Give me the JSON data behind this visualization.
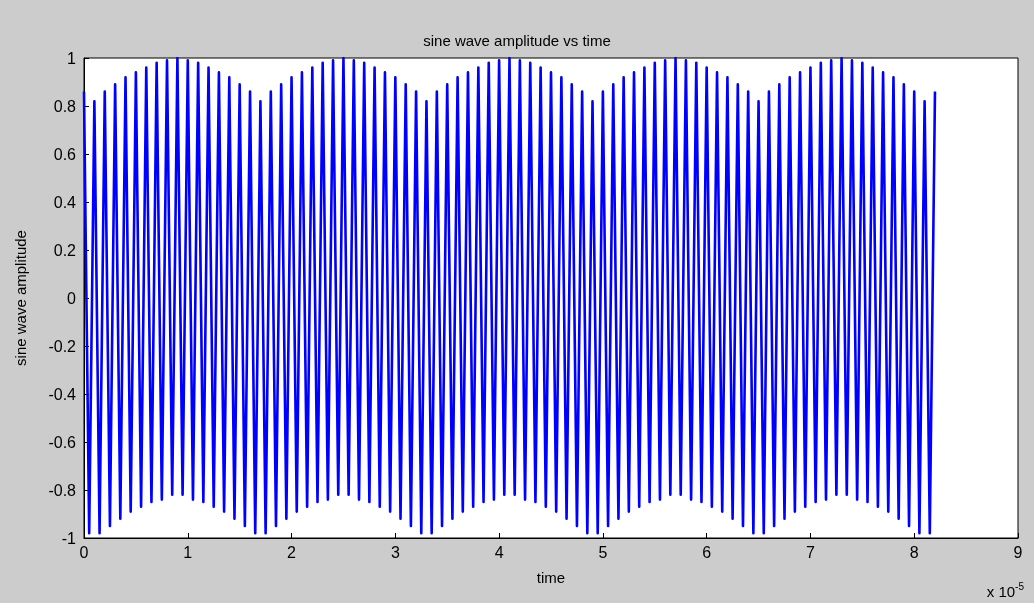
{
  "chart_data": {
    "type": "line",
    "title": "sine wave amplitude vs time",
    "xlabel": "time",
    "ylabel": "sine wave amplitude",
    "annotations": [
      "x 10$^{-5}$"
    ],
    "xlim": [
      0,
      9
    ],
    "xticks": [
      0,
      1,
      2,
      3,
      4,
      5,
      6,
      7,
      8,
      9
    ],
    "ylim": [
      -1,
      1
    ],
    "yticks": [
      -1,
      -0.8,
      -0.6,
      -0.4,
      -0.2,
      0,
      0.2,
      0.4,
      0.6,
      0.8,
      1
    ],
    "marker": "none",
    "line_style": "solid",
    "series": [
      {
        "color": "#0000ff",
        "x": [
          0,
          0.05,
          0.1,
          0.15,
          0.2,
          0.25,
          0.3,
          0.35,
          0.4,
          0.45,
          0.5,
          0.55,
          0.6,
          0.65,
          0.7,
          0.75,
          0.8,
          0.85,
          0.9,
          0.95,
          1,
          1.05,
          1.1,
          1.15,
          1.2,
          1.25,
          1.3,
          1.35,
          1.4,
          1.45,
          1.5,
          1.55,
          1.6,
          1.65,
          1.7,
          1.75,
          1.8,
          1.85,
          1.9,
          1.95,
          2,
          2.05,
          2.1,
          2.15,
          2.2,
          2.25,
          2.3,
          2.35,
          2.4,
          2.45,
          2.5,
          2.55,
          2.6,
          2.65,
          2.7,
          2.75,
          2.8,
          2.85,
          2.9,
          2.95,
          3,
          3.05,
          3.1,
          3.15,
          3.2,
          3.25,
          3.3,
          3.35,
          3.4,
          3.45,
          3.5,
          3.55,
          3.6,
          3.65,
          3.7,
          3.75,
          3.8,
          3.85,
          3.9,
          3.95,
          4,
          4.05,
          4.1,
          4.15,
          4.2,
          4.25,
          4.3,
          4.35,
          4.4,
          4.45,
          4.5,
          4.55,
          4.6,
          4.65,
          4.7,
          4.75,
          4.8,
          4.85,
          4.9,
          4.95,
          5,
          5.05,
          5.1,
          5.15,
          5.2,
          5.25,
          5.3,
          5.35,
          5.4,
          5.45,
          5.5,
          5.55,
          5.6,
          5.65,
          5.7,
          5.75,
          5.8,
          5.85,
          5.9,
          5.95,
          6,
          6.05,
          6.1,
          6.15,
          6.2,
          6.25,
          6.3,
          6.35,
          6.4,
          6.45,
          6.5,
          6.55,
          6.6,
          6.65,
          6.7,
          6.75,
          6.8,
          6.85,
          6.9,
          6.95,
          7,
          7.05,
          7.1,
          7.15,
          7.2,
          7.25,
          7.3,
          7.35,
          7.4,
          7.45,
          7.5,
          7.55,
          7.6,
          7.65,
          7.7,
          7.75,
          7.8,
          7.85,
          7.9,
          7.95,
          8,
          8.05,
          8.1,
          8.15,
          8.2
        ],
        "values": [
          0.86,
          -0.98,
          0.82,
          -0.98,
          0.86,
          -0.95,
          0.89,
          -0.92,
          0.92,
          -0.89,
          0.94,
          -0.87,
          0.96,
          -0.85,
          0.98,
          -0.84,
          0.99,
          -0.82,
          1,
          -0.82,
          0.99,
          -0.84,
          0.98,
          -0.85,
          0.96,
          -0.87,
          0.94,
          -0.89,
          0.92,
          -0.92,
          0.89,
          -0.95,
          0.86,
          -0.98,
          0.82,
          -0.98,
          0.86,
          -0.95,
          0.89,
          -0.92,
          0.92,
          -0.89,
          0.94,
          -0.87,
          0.96,
          -0.85,
          0.98,
          -0.84,
          0.99,
          -0.82,
          1,
          -0.82,
          0.99,
          -0.84,
          0.98,
          -0.85,
          0.96,
          -0.87,
          0.94,
          -0.89,
          0.92,
          -0.92,
          0.89,
          -0.95,
          0.86,
          -0.98,
          0.82,
          -0.98,
          0.86,
          -0.95,
          0.89,
          -0.92,
          0.92,
          -0.89,
          0.94,
          -0.87,
          0.96,
          -0.85,
          0.98,
          -0.84,
          0.99,
          -0.82,
          1,
          -0.82,
          0.99,
          -0.84,
          0.98,
          -0.85,
          0.96,
          -0.87,
          0.94,
          -0.89,
          0.92,
          -0.92,
          0.89,
          -0.95,
          0.86,
          -0.98,
          0.82,
          -0.98,
          0.86,
          -0.95,
          0.89,
          -0.92,
          0.92,
          -0.89,
          0.94,
          -0.87,
          0.96,
          -0.85,
          0.98,
          -0.84,
          0.99,
          -0.82,
          1,
          -0.82,
          0.99,
          -0.84,
          0.98,
          -0.85,
          0.96,
          -0.87,
          0.94,
          -0.89,
          0.92,
          -0.92,
          0.89,
          -0.95,
          0.86,
          -0.98,
          0.82,
          -0.98,
          0.86,
          -0.95,
          0.89,
          -0.92,
          0.92,
          -0.89,
          0.94,
          -0.87,
          0.96,
          -0.85,
          0.98,
          -0.84,
          0.99,
          -0.82,
          1,
          -0.82,
          0.99,
          -0.84,
          0.98,
          -0.85,
          0.96,
          -0.87,
          0.94,
          -0.89,
          0.92,
          -0.92,
          0.89,
          -0.95,
          0.86,
          -0.98,
          0.82,
          -0.98,
          0.86
        ]
      }
    ]
  }
}
